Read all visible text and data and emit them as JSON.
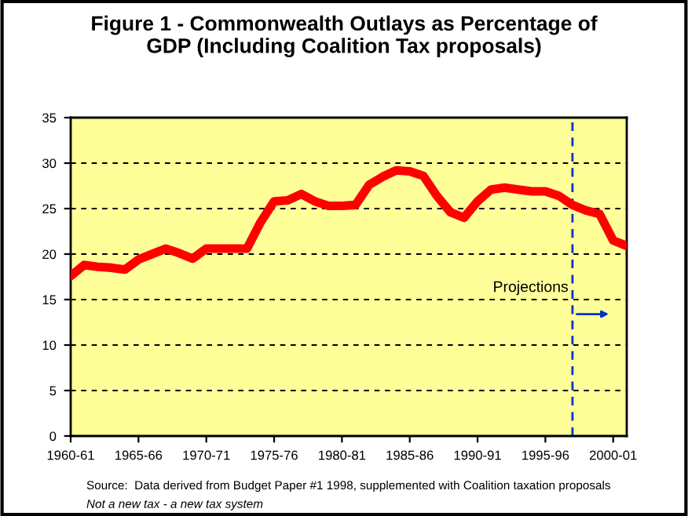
{
  "chart_data": {
    "type": "line",
    "title": "Figure 1 - Commonwealth Outlays as Percentage of\nGDP (Including Coalition Tax proposals)",
    "categories": [
      "1960-61",
      null,
      null,
      null,
      null,
      "1965-66",
      null,
      null,
      null,
      null,
      "1970-71",
      null,
      null,
      null,
      null,
      "1975-76",
      null,
      null,
      null,
      null,
      "1980-81",
      null,
      null,
      null,
      null,
      "1985-86",
      null,
      null,
      null,
      null,
      "1990-91",
      null,
      null,
      null,
      null,
      "1995-96",
      null,
      null,
      null,
      null,
      "2000-01",
      null
    ],
    "series": [
      {
        "color": "#ff0000",
        "values": [
          17.6,
          18.8,
          18.6,
          18.5,
          18.3,
          19.4,
          20.0,
          20.6,
          20.1,
          19.5,
          20.6,
          20.6,
          20.6,
          20.6,
          23.5,
          25.8,
          25.9,
          26.6,
          25.8,
          25.3,
          25.3,
          25.4,
          27.6,
          28.5,
          29.2,
          29.1,
          28.6,
          26.4,
          24.6,
          24.0,
          25.8,
          27.1,
          27.3,
          27.1,
          26.9,
          26.9,
          26.4,
          25.4,
          24.8,
          24.4,
          21.5,
          20.9
        ]
      }
    ],
    "ylim": [
      0,
      35
    ],
    "yticks": [
      0,
      5,
      10,
      15,
      20,
      25,
      30,
      35
    ],
    "grid": "y",
    "line_style": "solid",
    "marker": "none",
    "annotations": [
      "Projections",
      "Source:  Data derived from Budget Paper #1 1998, supplemented with Coalition taxation proposals",
      "Not a new tax - a new tax system"
    ]
  }
}
